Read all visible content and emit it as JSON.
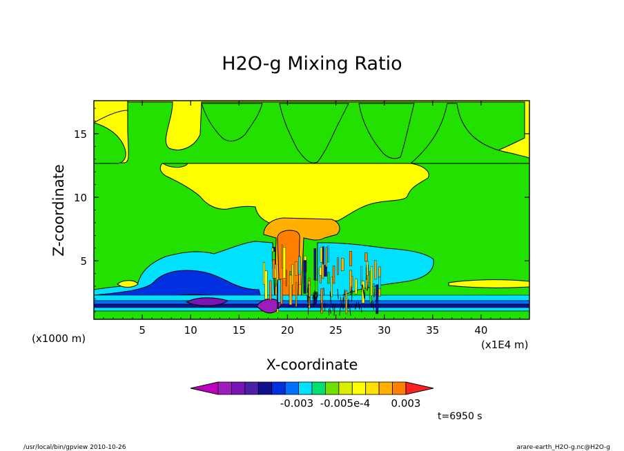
{
  "chart_data": {
    "type": "heatmap",
    "title": "H2O-g Mixing Ratio",
    "xlabel": "X-coordinate",
    "ylabel": "Z-coordinate",
    "x_unit_left": "(x1000 m)",
    "x_unit_right": "(x1E4 m)",
    "x_ticks": [
      5,
      10,
      15,
      20,
      25,
      30,
      35,
      40
    ],
    "y_ticks": [
      5,
      10,
      15
    ],
    "xlim": [
      0,
      45
    ],
    "ylim": [
      0.4,
      17.6
    ],
    "grid": false,
    "regions": [
      {
        "level": "green",
        "note": "background"
      },
      {
        "level": "yellow",
        "note": "upper layer 12.6-17.6"
      },
      {
        "level": "yellow",
        "note": "anvil cloud"
      },
      {
        "level": "orange",
        "note": "core column"
      },
      {
        "level": "cyan",
        "note": "mid-level shelf"
      },
      {
        "level": "blue",
        "note": "lower layer"
      },
      {
        "level": "purple",
        "note": "surface minimum"
      }
    ],
    "colorbar": {
      "colors": [
        "#c000c0",
        "#9c1cbc",
        "#7a14b4",
        "#4b1fa8",
        "#101090",
        "#0030e0",
        "#0070ff",
        "#00e0ff",
        "#00e070",
        "#70e000",
        "#d8f000",
        "#ffff00",
        "#ffe000",
        "#ffb000",
        "#ff8000",
        "#ff2020"
      ],
      "labels": [
        "-0.003",
        "-0.005e-4",
        "0.003"
      ]
    },
    "time_label": "t=6950 s"
  },
  "footer": {
    "left": "/usr/local/bin/gpview  2010-10-26",
    "right": "arare-earth_H2O-g.nc@H2O-g"
  }
}
